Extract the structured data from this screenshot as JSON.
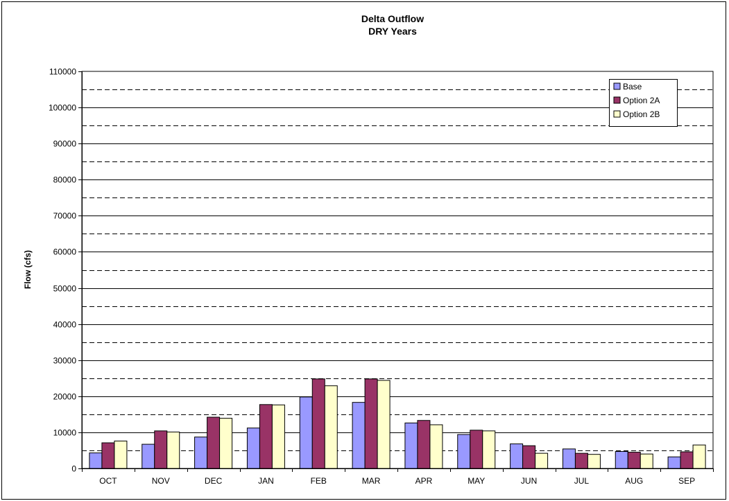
{
  "chart_data": {
    "type": "bar",
    "title": "Delta Outflow",
    "subtitle": "DRY Years",
    "xlabel": "",
    "ylabel": "Flow (cfs)",
    "ylim": [
      0,
      110000
    ],
    "ytick_step": 10000,
    "yticks": [
      "0",
      "10000",
      "20000",
      "30000",
      "40000",
      "50000",
      "60000",
      "70000",
      "80000",
      "90000",
      "100000",
      "110000"
    ],
    "grid": "solid major lines every 10000, dashed lines at 5000 midpoints",
    "legend_position": "top-right",
    "categories": [
      "OCT",
      "NOV",
      "DEC",
      "JAN",
      "FEB",
      "MAR",
      "APR",
      "MAY",
      "JUN",
      "JUL",
      "AUG",
      "SEP"
    ],
    "series": [
      {
        "name": "Base",
        "color": "#9999ff",
        "values": [
          4300,
          6700,
          8700,
          11200,
          19800,
          18300,
          12600,
          9400,
          6800,
          5400,
          4700,
          3200
        ]
      },
      {
        "name": "Option 2A",
        "color": "#993366",
        "values": [
          7100,
          10400,
          14200,
          17700,
          24800,
          24800,
          13300,
          10600,
          6300,
          4200,
          4500,
          4600
        ]
      },
      {
        "name": "Option 2B",
        "color": "#ffffcc",
        "values": [
          7600,
          10100,
          13900,
          17600,
          22900,
          24400,
          12100,
          10400,
          4200,
          3900,
          4000,
          6500
        ]
      }
    ]
  }
}
